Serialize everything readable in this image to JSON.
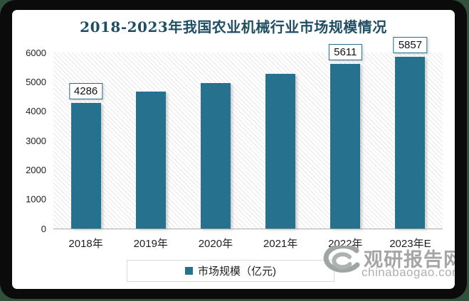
{
  "title": "2018-2023年我国农业机械行业市场规模情况",
  "legend": {
    "label": "市场规模（亿元)",
    "marker_color": "#26718E"
  },
  "watermark": {
    "brand": "观研报告网",
    "site": "chinabaogao.com"
  },
  "colors": {
    "bar": "#26718E",
    "title_text": "#1F4E63",
    "value_label_border": "#1F6E8C",
    "axis_line": "#ABABAB",
    "hatch_line": "#E7E7E7",
    "frame": "#0B0B0B",
    "frame_edge": "#31503C",
    "watermark_gray": "#A5A5A5"
  },
  "chart_data": {
    "type": "bar",
    "title": "2018-2023年我国农业机械行业市场规模情况",
    "categories": [
      "2018年",
      "2019年",
      "2020年",
      "2021年",
      "2022年",
      "2023年E"
    ],
    "values": [
      4286,
      4680,
      4970,
      5270,
      5611,
      5857
    ],
    "shown_value_labels": [
      {
        "index": 0,
        "text": "4286"
      },
      {
        "index": 4,
        "text": "5611"
      },
      {
        "index": 5,
        "text": "5857"
      }
    ],
    "xlabel": "",
    "ylabel": "",
    "ylim": [
      0,
      6000
    ],
    "yticks": [
      0,
      1000,
      2000,
      3000,
      4000,
      5000,
      6000
    ],
    "grid": false,
    "legend_entries": [
      "市场规模（亿元)"
    ],
    "legend_position": "bottom-center",
    "plot_background": "diagonal-hatch"
  }
}
